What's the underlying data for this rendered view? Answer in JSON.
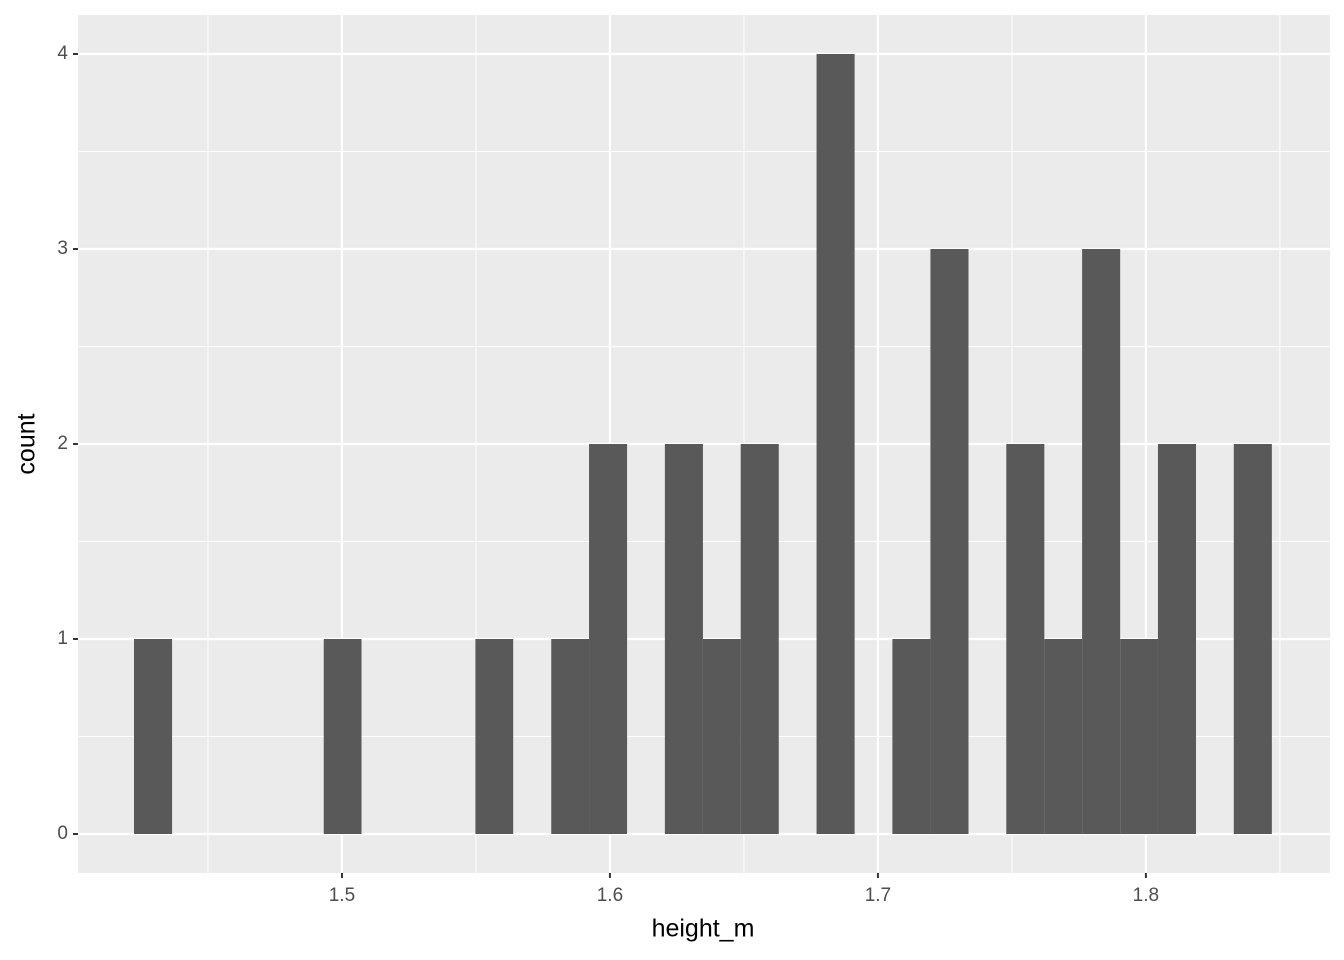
{
  "chart_data": {
    "type": "histogram",
    "x_label": "height_m",
    "y_label": "count",
    "bins": [
      1.4224,
      1.4366,
      1.4507,
      1.4649,
      1.479,
      1.4932,
      1.5073,
      1.5215,
      1.5356,
      1.5498,
      1.5639,
      1.5781,
      1.5922,
      1.6064,
      1.6205,
      1.6347,
      1.6488,
      1.663,
      1.6771,
      1.6913,
      1.7054,
      1.7196,
      1.7338,
      1.7479,
      1.7621,
      1.7762,
      1.7904,
      1.8045,
      1.8187,
      1.8328,
      1.847
    ],
    "values": [
      1,
      0,
      0,
      0,
      0,
      1,
      0,
      0,
      0,
      1,
      0,
      1,
      2,
      0,
      2,
      1,
      2,
      0,
      4,
      0,
      1,
      3,
      0,
      2,
      1,
      3,
      1,
      2,
      0,
      2
    ],
    "color": "#595959",
    "xlim": [
      1.4015,
      1.8687
    ],
    "ylim": [
      -0.2,
      4.2
    ],
    "xticks": [
      1.5,
      1.6,
      1.7,
      1.8
    ],
    "yticks": [
      0,
      1,
      2,
      3,
      4
    ],
    "x_minor_ticks": [
      1.45,
      1.55,
      1.65,
      1.75,
      1.85
    ],
    "y_minor_ticks": [
      0.5,
      1.5,
      2.5,
      3.5
    ],
    "grid": true,
    "panel_color": "#ebebeb",
    "grid_color": "#ffffff"
  }
}
